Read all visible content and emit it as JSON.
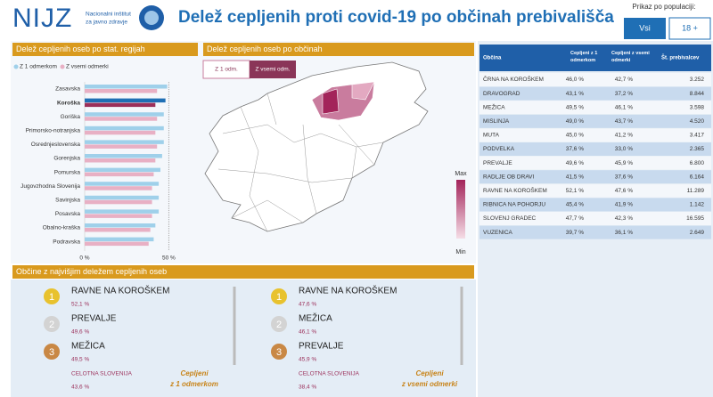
{
  "header": {
    "logo": "NIJZ",
    "institute": [
      "Nacionalni inštitut",
      "za javno zdravje"
    ],
    "title": "Delež cepljenih proti covid-19 po občinah prebivališča",
    "population_label": "Prikaz po populaciji:",
    "population_buttons": [
      "Vsi",
      "18 +"
    ]
  },
  "chart_data": {
    "type": "bar",
    "orientation": "horizontal",
    "title": "Delež cepljenih oseb po stat. regijah",
    "categories": [
      "Zasavska",
      "Koroška",
      "Goriška",
      "Primorsko-notranjska",
      "Osrednjeslovenska",
      "Gorenjska",
      "Pomurska",
      "Jugovzhodna Slovenija",
      "Savinjska",
      "Posavska",
      "Obalno-kraška",
      "Podravska"
    ],
    "series": [
      {
        "name": "Z 1 odmerkom",
        "color": "#9fd0ea",
        "values": [
          49,
          48,
          47,
          47,
          47,
          46,
          45,
          44,
          44,
          44,
          42,
          41
        ]
      },
      {
        "name": "Z vsemi odmerki",
        "color": "#e8b0c4",
        "values": [
          43,
          42,
          43,
          42,
          43,
          42,
          41,
          40,
          40,
          40,
          39,
          38
        ]
      }
    ],
    "highlight": "Koroška",
    "highlight_colors": [
      "#1f6fb5",
      "#9b2f5a"
    ],
    "xlim": [
      0,
      54
    ],
    "xticks": [
      {
        "value": 0,
        "label": "0 %"
      },
      {
        "value": 50,
        "label": "50 %"
      }
    ],
    "legend": "top-left"
  },
  "map": {
    "title": "Delež cepljenih oseb po občinah",
    "toggles": [
      "Z 1 odm.",
      "Z vsemi odm."
    ],
    "legend_max": "Max",
    "legend_min": "Min"
  },
  "table": {
    "columns": [
      "Občina",
      "Cepljeni z 1 odmerkom",
      "Cepljeni z vsemi odmerki",
      "Št. prebivalcev"
    ],
    "rows": [
      [
        "ČRNA NA KOROŠKEM",
        "46,0 %",
        "42,7 %",
        "3.252"
      ],
      [
        "DRAVOGRAD",
        "43,1 %",
        "37,2 %",
        "8.844"
      ],
      [
        "MEŽICA",
        "49,5 %",
        "46,1 %",
        "3.598"
      ],
      [
        "MISLINJA",
        "49,0 %",
        "43,7 %",
        "4.520"
      ],
      [
        "MUTA",
        "45,0 %",
        "41,2 %",
        "3.417"
      ],
      [
        "PODVELKA",
        "37,6 %",
        "33,0 %",
        "2.365"
      ],
      [
        "PREVALJE",
        "49,6 %",
        "45,9 %",
        "6.800"
      ],
      [
        "RADLJE OB DRAVI",
        "41,5 %",
        "37,6 %",
        "6.164"
      ],
      [
        "RAVNE NA KOROŠKEM",
        "52,1 %",
        "47,6 %",
        "11.289"
      ],
      [
        "RIBNICA NA POHORJU",
        "45,4 %",
        "41,9 %",
        "1.142"
      ],
      [
        "SLOVENJ GRADEC",
        "47,7 %",
        "42,3 %",
        "16.595"
      ],
      [
        "VUZENICA",
        "39,7 %",
        "36,1 %",
        "2.649"
      ]
    ]
  },
  "top": {
    "title": "Občine z najvišjim deležem cepljenih oseb",
    "panels": [
      {
        "items": [
          {
            "rank": "1",
            "name": "RAVNE NA KOROŠKEM",
            "value": "52,1 %"
          },
          {
            "rank": "2",
            "name": "PREVALJE",
            "value": "49,6 %"
          },
          {
            "rank": "3",
            "name": "MEŽICA",
            "value": "49,5 %"
          }
        ],
        "total_label": "CELOTNA SLOVENIJA",
        "total_value": "43,6 %",
        "caption": [
          "Cepljeni",
          "z 1 odmerkom"
        ]
      },
      {
        "items": [
          {
            "rank": "1",
            "name": "RAVNE NA KOROŠKEM",
            "value": "47,6 %"
          },
          {
            "rank": "2",
            "name": "MEŽICA",
            "value": "46,1 %"
          },
          {
            "rank": "3",
            "name": "PREVALJE",
            "value": "45,9 %"
          }
        ],
        "total_label": "CELOTNA SLOVENIJA",
        "total_value": "38,4 %",
        "caption": [
          "Cepljeni",
          "z vsemi odmerki"
        ]
      }
    ]
  }
}
